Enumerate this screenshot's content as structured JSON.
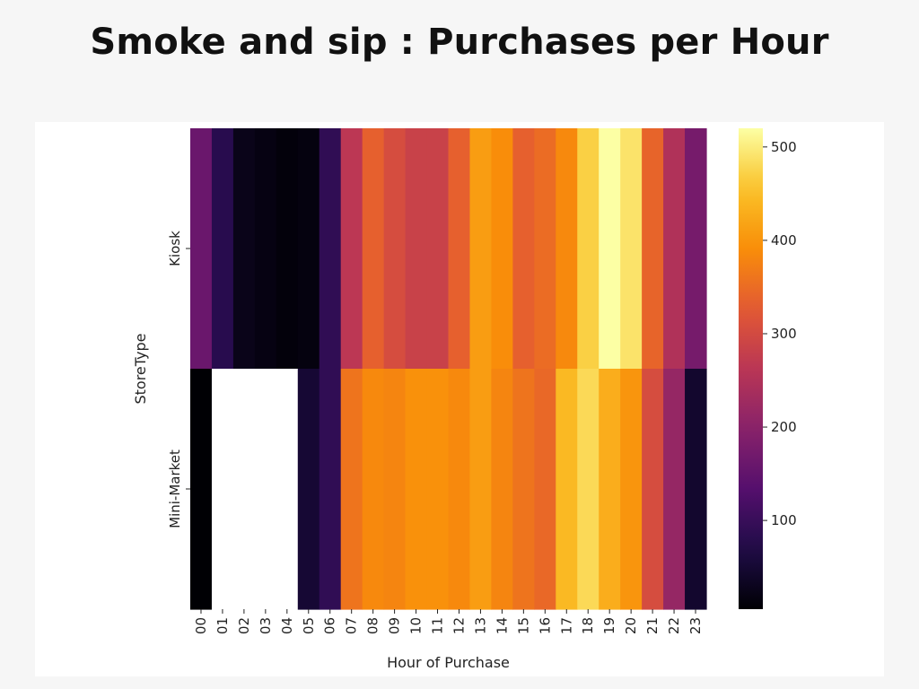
{
  "title": "Smoke and sip : Purchases per Hour",
  "chart_data": {
    "type": "heatmap",
    "title": "Smoke and sip : Purchases per Hour",
    "xlabel": "Hour of Purchase",
    "ylabel": "StoreType",
    "x": [
      "00",
      "01",
      "02",
      "03",
      "04",
      "05",
      "06",
      "07",
      "08",
      "09",
      "10",
      "11",
      "12",
      "13",
      "14",
      "15",
      "16",
      "17",
      "18",
      "19",
      "20",
      "21",
      "22",
      "23"
    ],
    "y": [
      "Kiosk",
      "Mini-Market"
    ],
    "values": [
      [
        160,
        80,
        25,
        18,
        12,
        15,
        90,
        265,
        335,
        305,
        285,
        285,
        335,
        410,
        390,
        335,
        350,
        385,
        470,
        520,
        490,
        340,
        250,
        175
      ],
      [
        5,
        null,
        null,
        null,
        null,
        50,
        90,
        360,
        385,
        380,
        395,
        395,
        385,
        410,
        380,
        360,
        345,
        445,
        480,
        430,
        400,
        305,
        215,
        45
      ]
    ],
    "colormap": "inferno",
    "colorbar": {
      "min": 5,
      "max": 520,
      "ticks": [
        100,
        200,
        300,
        400,
        500
      ]
    },
    "missing_color": "#ffffff"
  }
}
